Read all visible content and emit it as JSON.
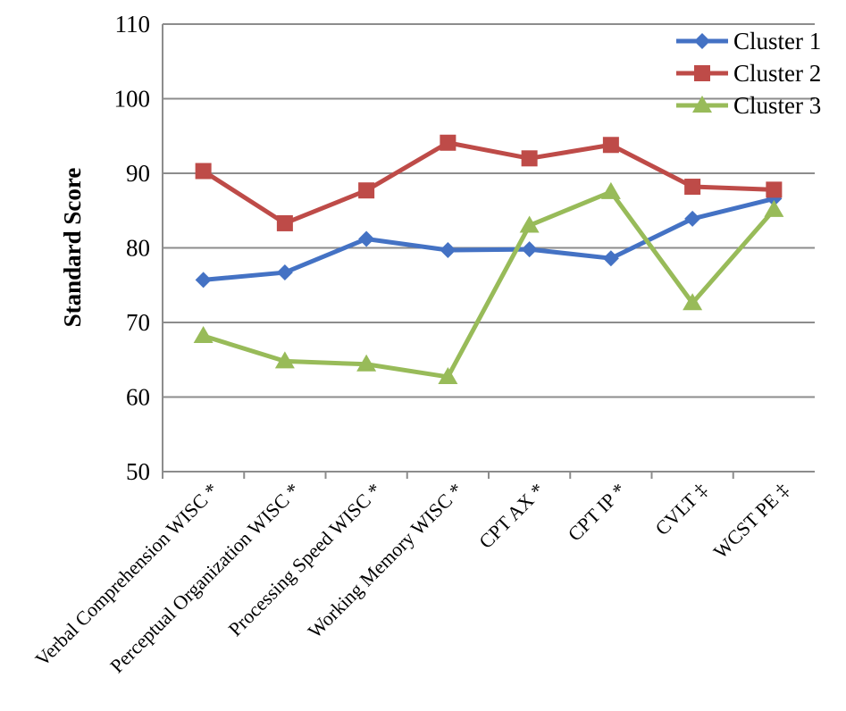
{
  "chart_data": {
    "type": "line",
    "title": "",
    "xlabel": "",
    "ylabel": "Standard Score",
    "ylim": [
      50,
      110
    ],
    "yticks": [
      50,
      60,
      70,
      80,
      90,
      100,
      110
    ],
    "grid": true,
    "legend_position": "top-right",
    "categories": [
      "Verbal Comprehension WISC *",
      "Perceptual Organization WISC *",
      "Processing Speed WISC *",
      "Working Memory WISC *",
      "CPT AX *",
      "CPT IP *",
      "CVLT ‡",
      "WCST PE ‡"
    ],
    "series": [
      {
        "name": "Cluster 1",
        "color": "#4472C4",
        "marker": "diamond",
        "values": [
          75.7,
          76.7,
          81.2,
          79.7,
          79.8,
          78.6,
          83.9,
          86.6
        ]
      },
      {
        "name": "Cluster 2",
        "color": "#BE4B48",
        "marker": "square",
        "values": [
          90.3,
          83.3,
          87.7,
          94.1,
          92.0,
          93.8,
          88.2,
          87.8
        ]
      },
      {
        "name": "Cluster 3",
        "color": "#98BB59",
        "marker": "triangle",
        "values": [
          68.2,
          64.8,
          64.4,
          62.7,
          83.0,
          87.5,
          72.6,
          85.1
        ]
      }
    ]
  }
}
